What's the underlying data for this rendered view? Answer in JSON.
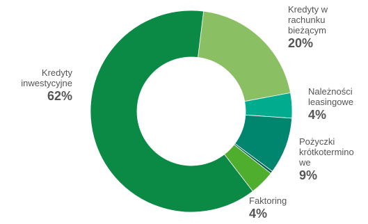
{
  "chart_data": {
    "type": "pie",
    "donut": true,
    "slices": [
      {
        "label": "Kredyty w\nrachunku\nbieżącym",
        "value": 20,
        "display": "20%",
        "color": "#8abf63"
      },
      {
        "label": "Należności\nleasingowe",
        "value": 4,
        "display": "4%",
        "color": "#00ab8e"
      },
      {
        "label": "Pożyczki\nkrótkotermino\nwe",
        "value": 9,
        "display": "9%",
        "color": "#00856f"
      },
      {
        "label": "",
        "value": 0.4,
        "display": "",
        "color": "#0a5e4f"
      },
      {
        "label": "Faktoring",
        "value": 4,
        "display": "4%",
        "color": "#4fae2e"
      },
      {
        "label": "Kredyty\ninwestycyjne",
        "value": 62,
        "display": "62%",
        "color": "#0b8a45"
      }
    ]
  }
}
